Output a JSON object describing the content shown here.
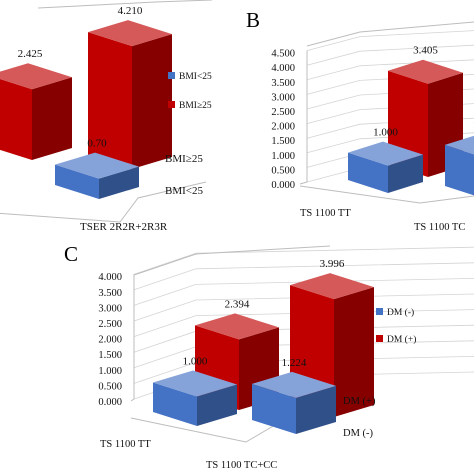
{
  "chart_data": [
    {
      "type": "bar",
      "panel_label": "",
      "categories": [
        "",
        "TSER 2R2R+2R3R"
      ],
      "depth_labels": [
        "BMI<25",
        "BMI≥25"
      ],
      "series": [
        {
          "name": "BMI<25",
          "values": [
            null,
            0.7
          ],
          "value_labels": [
            "",
            "0.70"
          ],
          "color": "#4472C4"
        },
        {
          "name": "BMI≥25",
          "values": [
            2.425,
            4.21
          ],
          "value_labels": [
            "2.425",
            "4.210"
          ],
          "color": "#C00000"
        }
      ],
      "yticks": [],
      "ylim": [
        0,
        4.5
      ],
      "legend_position": "right"
    },
    {
      "type": "bar",
      "panel_label": "B",
      "categories": [
        "TS 1100 TT",
        "TS 1100 TC"
      ],
      "depth_labels": [],
      "series": [
        {
          "name": "",
          "values": [
            1.0,
            1.5
          ],
          "value_labels": [
            "1.000",
            "1.50"
          ],
          "color": "#4472C4"
        },
        {
          "name": "",
          "values": [
            3.405,
            null
          ],
          "value_labels": [
            "3.405",
            ""
          ],
          "color": "#C00000"
        }
      ],
      "yticks": [
        "0.000",
        "0.500",
        "1.000",
        "1.500",
        "2.000",
        "2.500",
        "3.000",
        "3.500",
        "4.000",
        "4.500"
      ],
      "ylim": [
        0,
        4.5
      ],
      "legend_position": "none"
    },
    {
      "type": "bar",
      "panel_label": "C",
      "categories": [
        "TS 1100 TT",
        "TS 1100 TC+CC"
      ],
      "depth_labels": [
        "DM (-)",
        "DM (+)"
      ],
      "series": [
        {
          "name": "DM (-)",
          "values": [
            1.0,
            1.224
          ],
          "value_labels": [
            "1.000",
            "1.224"
          ],
          "color": "#4472C4"
        },
        {
          "name": "DM (+)",
          "values": [
            2.394,
            3.996
          ],
          "value_labels": [
            "2.394",
            "3.996"
          ],
          "color": "#C00000"
        }
      ],
      "yticks": [
        "0.000",
        "0.500",
        "1.000",
        "1.500",
        "2.000",
        "2.500",
        "3.000",
        "3.500",
        "4.000"
      ],
      "ylim": [
        0,
        4.5
      ],
      "legend_position": "right"
    }
  ]
}
